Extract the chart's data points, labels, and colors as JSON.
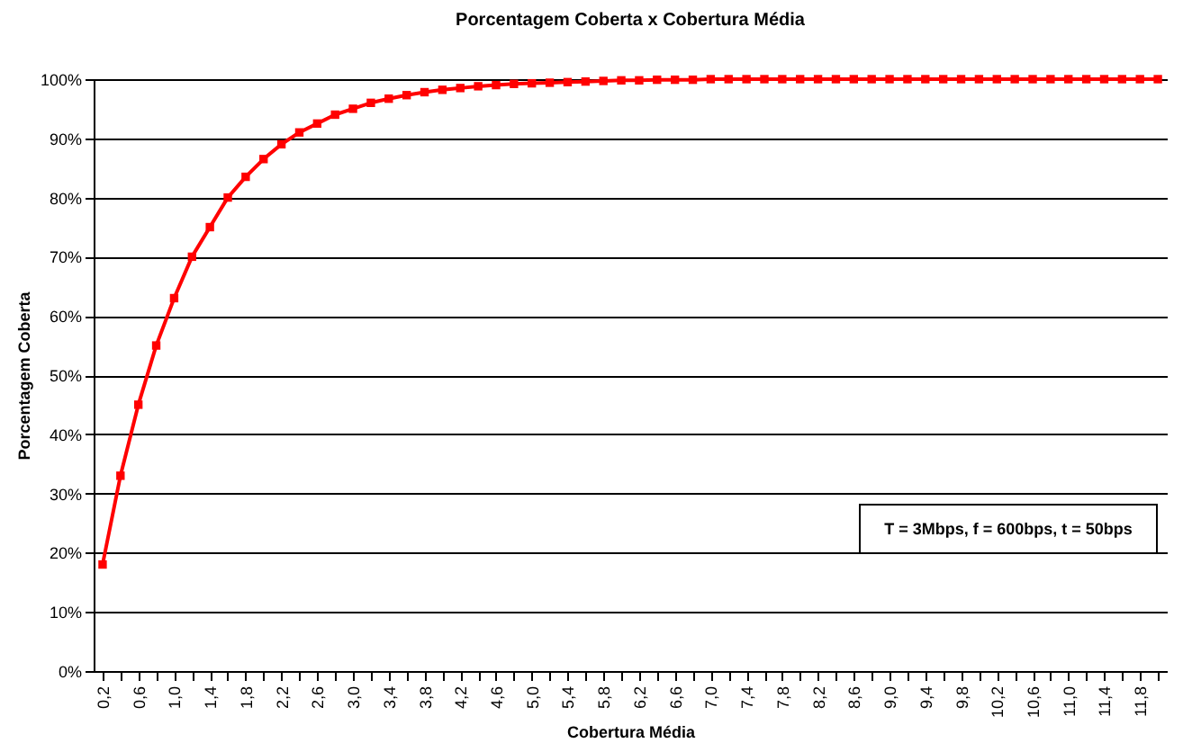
{
  "chart_data": {
    "type": "line",
    "title": "Porcentagem Coberta x Cobertura Média",
    "xlabel": "Cobertura Média",
    "ylabel": "Porcentagem Coberta",
    "categories": [
      "0,2",
      null,
      "0,6",
      null,
      "1,0",
      null,
      "1,4",
      null,
      "1,8",
      null,
      "2,2",
      null,
      "2,6",
      null,
      "3,0",
      null,
      "3,4",
      null,
      "3,8",
      null,
      "4,2",
      null,
      "4,6",
      null,
      "5,0",
      null,
      "5,4",
      null,
      "5,8",
      null,
      "6,2",
      null,
      "6,6",
      null,
      "7,0",
      null,
      "7,4",
      null,
      "7,8",
      null,
      "8,2",
      null,
      "8,6",
      null,
      "9,0",
      null,
      "9,4",
      null,
      "9,8",
      null,
      "10,2",
      null,
      "10,6",
      null,
      "11,0",
      null,
      "11,4",
      null,
      "11,8",
      null
    ],
    "series": [
      {
        "color": "#ff0000",
        "values": [
          18,
          33,
          45,
          55,
          63,
          70,
          75,
          80,
          83.5,
          86.5,
          89,
          91,
          92.5,
          94,
          95,
          96,
          96.7,
          97.3,
          97.8,
          98.2,
          98.5,
          98.8,
          99,
          99.2,
          99.3,
          99.4,
          99.5,
          99.6,
          99.7,
          99.8,
          99.8,
          99.9,
          99.9,
          99.9,
          100,
          100,
          100,
          100,
          100,
          100,
          100,
          100,
          100,
          100,
          100,
          100,
          100,
          100,
          100,
          100,
          100,
          100,
          100,
          100,
          100,
          100,
          100,
          100,
          100,
          100
        ]
      }
    ],
    "ylim": [
      0,
      100
    ],
    "yticks": [
      {
        "value": 0,
        "label": "0%"
      },
      {
        "value": 10,
        "label": "10%"
      },
      {
        "value": 20,
        "label": "20%"
      },
      {
        "value": 30,
        "label": "30%"
      },
      {
        "value": 40,
        "label": "40%"
      },
      {
        "value": 50,
        "label": "50%"
      },
      {
        "value": 60,
        "label": "60%"
      },
      {
        "value": 70,
        "label": "70%"
      },
      {
        "value": 80,
        "label": "80%"
      },
      {
        "value": 90,
        "label": "90%"
      },
      {
        "value": 100,
        "label": "100%"
      }
    ],
    "grid": "y",
    "marker": "square",
    "line_style": "solid",
    "annotations": [
      "T = 3Mbps, f = 600bps, t = 50bps"
    ]
  }
}
